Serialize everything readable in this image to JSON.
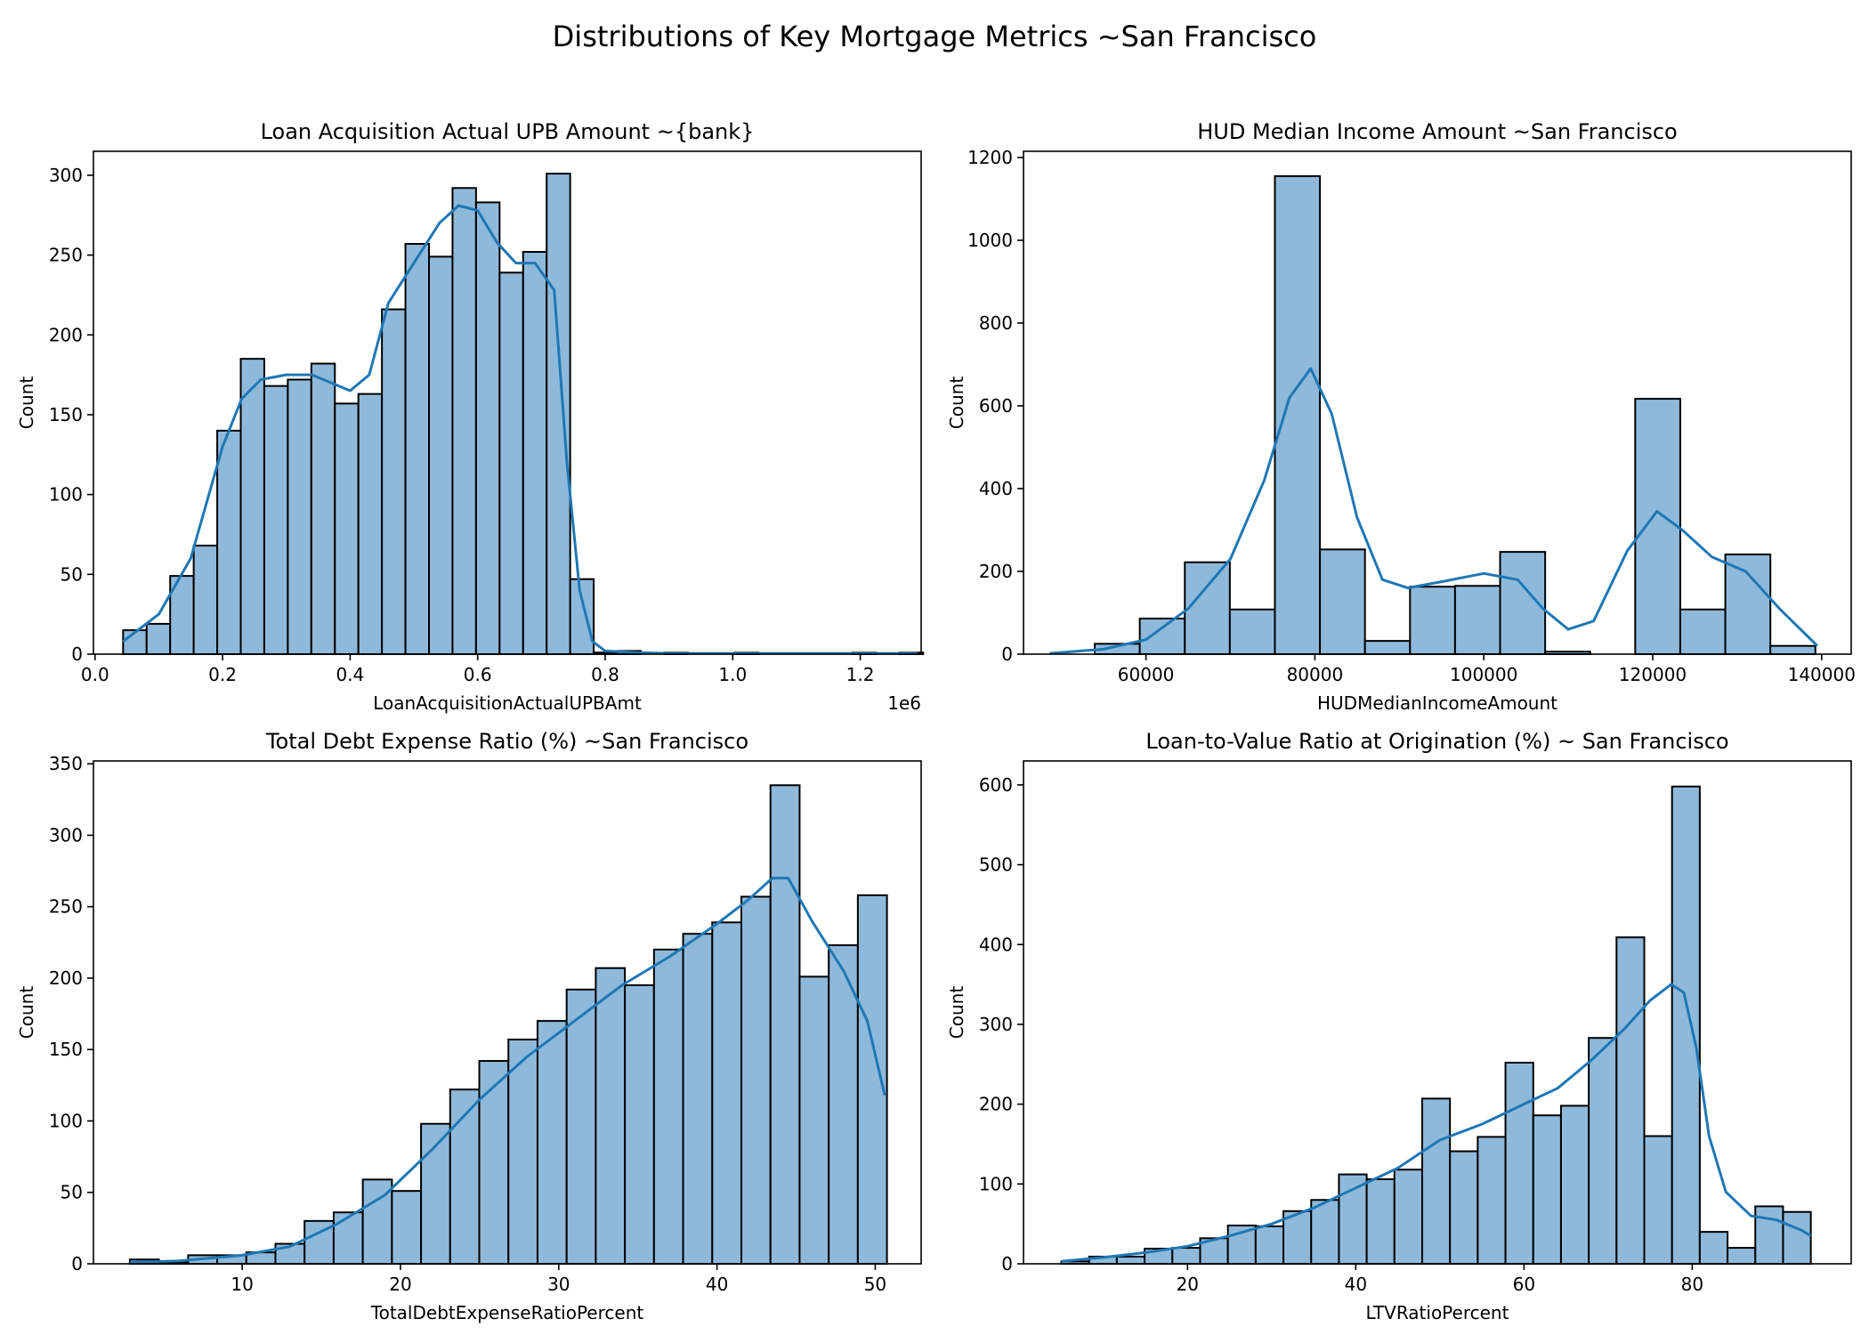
{
  "figure": {
    "title": "Distributions of Key Mortgage Metrics ~San Francisco"
  },
  "chart_data": [
    {
      "type": "bar",
      "subtype": "histogram",
      "title": "Loan Acquisition Actual UPB Amount ~{bank}",
      "xlabel": "LoanAcquisitionActualUPBAmt",
      "ylabel": "Count",
      "x_offset_label": "1e6",
      "xlim": [
        -0.0025,
        1.2955
      ],
      "ylim": [
        0,
        315
      ],
      "xticks": [
        0.0,
        0.2,
        0.4,
        0.6,
        0.8,
        1.0,
        1.2
      ],
      "xtick_labels": [
        "0.0",
        "0.2",
        "0.4",
        "0.6",
        "0.8",
        "1.0",
        "1.2"
      ],
      "yticks": [
        0,
        50,
        100,
        150,
        200,
        250,
        300
      ],
      "bin_edges": [
        0.044,
        0.0809,
        0.1178,
        0.1547,
        0.1916,
        0.2285,
        0.2654,
        0.3023,
        0.3392,
        0.3761,
        0.413,
        0.4499,
        0.4868,
        0.5237,
        0.5606,
        0.5975,
        0.6344,
        0.6713,
        0.7082,
        0.7451,
        0.782,
        0.8189,
        0.8558,
        0.8927,
        0.9296,
        0.9665,
        1.0034,
        1.0403,
        1.0772,
        1.1141,
        1.151,
        1.1879,
        1.2248,
        1.2617,
        1.2986
      ],
      "counts": [
        15,
        19,
        49,
        68,
        140,
        185,
        168,
        172,
        182,
        157,
        163,
        216,
        257,
        249,
        292,
        283,
        239,
        252,
        301,
        47,
        1,
        2,
        0,
        1,
        0,
        0,
        1,
        0,
        0,
        0,
        0,
        1,
        0,
        1
      ],
      "kde_x": [
        0.044,
        0.1,
        0.15,
        0.2,
        0.23,
        0.26,
        0.3,
        0.34,
        0.37,
        0.4,
        0.43,
        0.46,
        0.5,
        0.54,
        0.57,
        0.6,
        0.63,
        0.66,
        0.69,
        0.72,
        0.74,
        0.76,
        0.78,
        0.8,
        0.85,
        0.9,
        1.0,
        1.1,
        1.2,
        1.29
      ],
      "kde_y": [
        8,
        25,
        60,
        130,
        160,
        172,
        175,
        175,
        170,
        165,
        175,
        220,
        245,
        270,
        281,
        278,
        258,
        245,
        245,
        228,
        120,
        40,
        8,
        2,
        1,
        0.5,
        0.5,
        0.5,
        0.5,
        0.5
      ],
      "color": "#1f77b4",
      "bar_fill": "#8eb9db"
    },
    {
      "type": "bar",
      "subtype": "histogram",
      "title": "HUD Median Income Amount ~San Francisco",
      "xlabel": "HUDMedianIncomeAmount",
      "ylabel": "Count",
      "xlim": [
        45500,
        143500
      ],
      "ylim": [
        0,
        1215
      ],
      "xticks": [
        60000,
        80000,
        100000,
        120000,
        140000
      ],
      "xtick_labels": [
        "60000",
        "80000",
        "100000",
        "120000",
        "140000"
      ],
      "yticks": [
        0,
        200,
        400,
        600,
        800,
        1000,
        1200
      ],
      "bin_edges": [
        48600,
        53933,
        59266,
        64599,
        69932,
        75265,
        80598,
        85931,
        91264,
        96597,
        101930,
        107263,
        112596,
        117929,
        123262,
        128595,
        133928,
        139261
      ],
      "counts": [
        0,
        25,
        86,
        222,
        108,
        1155,
        253,
        32,
        163,
        165,
        247,
        6,
        0,
        617,
        108,
        241,
        20
      ],
      "kde_x": [
        48600,
        55000,
        60000,
        65000,
        70000,
        74000,
        77000,
        79500,
        82000,
        85000,
        88000,
        91000,
        95000,
        100000,
        104000,
        107000,
        110000,
        113000,
        117000,
        120500,
        123500,
        127000,
        131000,
        135000,
        139500
      ],
      "kde_y": [
        2,
        12,
        35,
        110,
        230,
        420,
        620,
        690,
        580,
        330,
        180,
        160,
        175,
        195,
        180,
        110,
        60,
        80,
        250,
        345,
        300,
        235,
        200,
        110,
        20
      ],
      "color": "#1f77b4",
      "bar_fill": "#8eb9db"
    },
    {
      "type": "bar",
      "subtype": "histogram",
      "title": "Total Debt Expense Ratio (%) ~San Francisco",
      "xlabel": "TotalDebtExpenseRatioPercent",
      "ylabel": "Count",
      "xlim": [
        0.6,
        52.9
      ],
      "ylim": [
        0,
        352
      ],
      "xticks": [
        10,
        20,
        30,
        40,
        50
      ],
      "xtick_labels": [
        "10",
        "20",
        "30",
        "40",
        "50"
      ],
      "yticks": [
        0,
        50,
        100,
        150,
        200,
        250,
        300,
        350
      ],
      "bin_edges": [
        2.9,
        4.74,
        6.58,
        8.42,
        10.26,
        12.1,
        13.94,
        15.78,
        17.62,
        19.46,
        21.3,
        23.14,
        24.98,
        26.82,
        28.66,
        30.5,
        32.34,
        34.18,
        36.02,
        37.86,
        39.7,
        41.54,
        43.38,
        45.22,
        47.06,
        48.9,
        50.74
      ],
      "counts": [
        3,
        1,
        6,
        6,
        8,
        14,
        30,
        36,
        59,
        51,
        98,
        122,
        142,
        157,
        170,
        192,
        207,
        195,
        220,
        231,
        239,
        257,
        335,
        201,
        223,
        258
      ],
      "kde_x": [
        2.9,
        6,
        10,
        13,
        16,
        19,
        22,
        25,
        28,
        31,
        34,
        37,
        40,
        42,
        43.5,
        44.5,
        46,
        48,
        49.5,
        50.6
      ],
      "kde_y": [
        1,
        2,
        6,
        12,
        28,
        48,
        80,
        115,
        145,
        170,
        195,
        215,
        238,
        255,
        270,
        270,
        240,
        205,
        170,
        118
      ],
      "color": "#1f77b4",
      "bar_fill": "#8eb9db"
    },
    {
      "type": "bar",
      "subtype": "histogram",
      "title": "Loan-to-Value Ratio at Origination (%) ~ San Francisco",
      "xlabel": "LTVRatioPercent",
      "ylabel": "Count",
      "xlim": [
        0.5,
        98.9
      ],
      "ylim": [
        0,
        630
      ],
      "xticks": [
        20,
        40,
        60,
        80
      ],
      "xtick_labels": [
        "20",
        "40",
        "60",
        "80"
      ],
      "yticks": [
        0,
        100,
        200,
        300,
        400,
        500,
        600
      ],
      "bin_edges": [
        5,
        8.3,
        11.6,
        14.9,
        18.2,
        21.5,
        24.8,
        28.1,
        31.4,
        34.7,
        38,
        41.3,
        44.6,
        47.9,
        51.2,
        54.5,
        57.8,
        61.1,
        64.4,
        67.7,
        71,
        74.3,
        77.6,
        80.9,
        84.2,
        87.5,
        90.8,
        94.1
      ],
      "counts": [
        3,
        9,
        9,
        19,
        20,
        32,
        48,
        47,
        66,
        80,
        112,
        106,
        118,
        207,
        141,
        159,
        252,
        186,
        198,
        283,
        409,
        160,
        598,
        40,
        20,
        72,
        65
      ],
      "kde_x": [
        5,
        10,
        15,
        20,
        25,
        30,
        35,
        40,
        45,
        50,
        55,
        60,
        64,
        68,
        72,
        75,
        77.5,
        79,
        80.5,
        82,
        84,
        87,
        90,
        93,
        94.1
      ],
      "kde_y": [
        3,
        8,
        14,
        22,
        35,
        50,
        70,
        95,
        120,
        155,
        175,
        200,
        220,
        255,
        295,
        330,
        350,
        340,
        270,
        160,
        90,
        60,
        55,
        42,
        35
      ],
      "color": "#1f77b4",
      "bar_fill": "#8eb9db"
    }
  ]
}
